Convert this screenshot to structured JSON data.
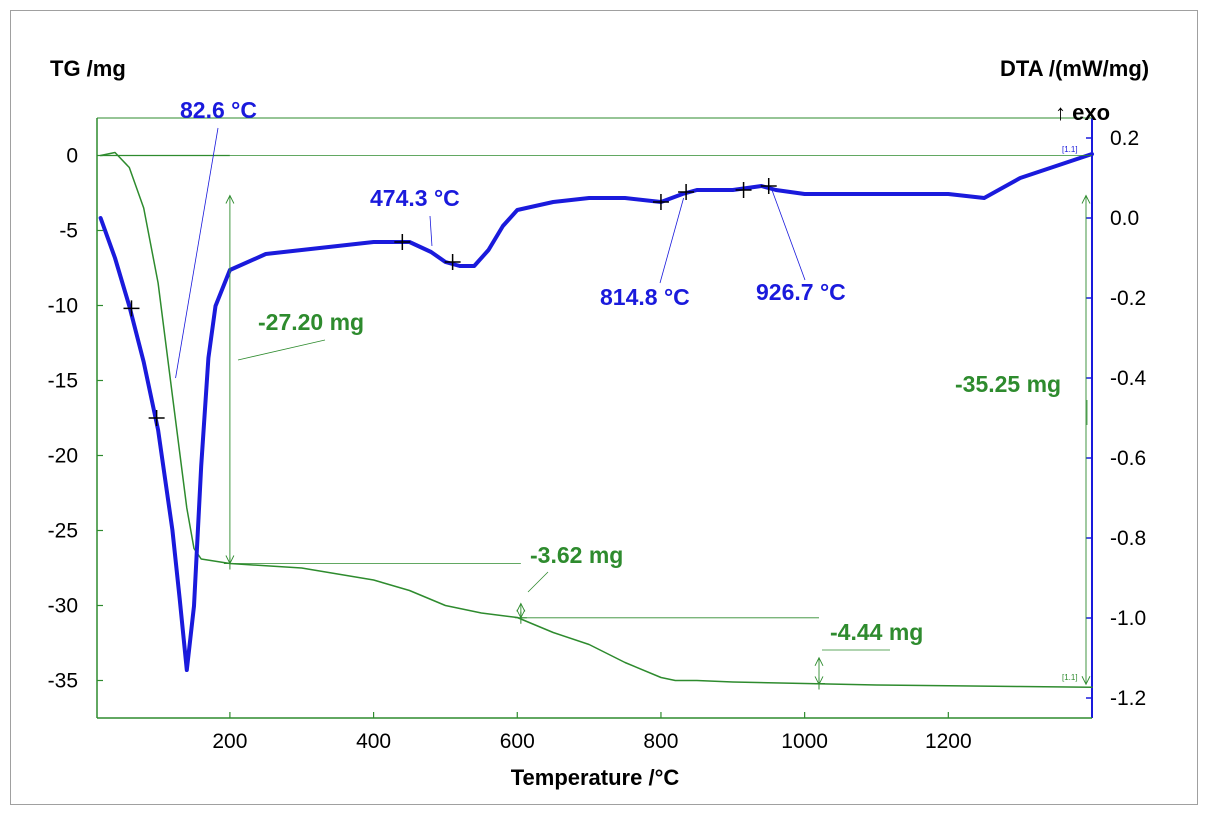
{
  "chart_data": {
    "type": "line",
    "xlabel": "Temperature /°C",
    "ylabel_left": "TG /mg",
    "ylabel_right": "DTA /(mW/mg)",
    "exo_label": "↑ exo",
    "xlim": [
      15,
      1400
    ],
    "ylim_left": [
      -37.5,
      2.5
    ],
    "ylim_right": [
      -1.25,
      0.25
    ],
    "x_ticks": [
      200,
      400,
      600,
      800,
      1000,
      1200
    ],
    "x_tick_labels": [
      "200",
      "400",
      "600",
      "800",
      "1000",
      "1200"
    ],
    "y_left_ticks": [
      0,
      -5,
      -10,
      -15,
      -20,
      -25,
      -30,
      -35
    ],
    "y_left_tick_labels": [
      "0",
      "-5",
      "-10",
      "-15",
      "-20",
      "-25",
      "-30",
      "-35"
    ],
    "y_right_ticks": [
      0.2,
      0.0,
      -0.2,
      -0.4,
      -0.6,
      -0.8,
      -1.0,
      -1.2
    ],
    "y_right_tick_labels": [
      "0.2",
      "0.0",
      "-0.2",
      "-0.4",
      "-0.6",
      "-0.8",
      "-1.0",
      "-1.2"
    ],
    "colors": {
      "tg": "#2e8b2e",
      "dta": "#1a1adc",
      "tg_text": "#2e8b2e",
      "dta_text": "#1a1adc"
    },
    "series": [
      {
        "axis": "left",
        "color": "#2e8b2e",
        "x": [
          20,
          40,
          60,
          80,
          100,
          120,
          140,
          150,
          160,
          200,
          300,
          400,
          450,
          500,
          550,
          600,
          620,
          650,
          700,
          750,
          800,
          820,
          850,
          900,
          1000,
          1100,
          1200,
          1300,
          1400
        ],
        "y": [
          0,
          0.2,
          -0.8,
          -3.5,
          -8.5,
          -16,
          -23.5,
          -26.2,
          -26.9,
          -27.2,
          -27.5,
          -28.3,
          -29.0,
          -30.0,
          -30.5,
          -30.8,
          -31.2,
          -31.8,
          -32.6,
          -33.8,
          -34.8,
          -35.0,
          -35.0,
          -35.1,
          -35.2,
          -35.3,
          -35.35,
          -35.4,
          -35.45
        ]
      },
      {
        "axis": "right",
        "color": "#1a1adc",
        "x": [
          20,
          40,
          60,
          80,
          100,
          120,
          130,
          140,
          150,
          160,
          170,
          180,
          200,
          250,
          300,
          350,
          400,
          450,
          480,
          500,
          520,
          540,
          560,
          580,
          600,
          650,
          700,
          750,
          800,
          830,
          850,
          900,
          940,
          960,
          1000,
          1100,
          1200,
          1250,
          1270,
          1300,
          1350,
          1400
        ],
        "y": [
          0.0,
          -0.1,
          -0.22,
          -0.36,
          -0.53,
          -0.78,
          -0.95,
          -1.13,
          -0.97,
          -0.62,
          -0.35,
          -0.22,
          -0.13,
          -0.09,
          -0.08,
          -0.07,
          -0.06,
          -0.06,
          -0.085,
          -0.11,
          -0.12,
          -0.12,
          -0.08,
          -0.02,
          0.02,
          0.04,
          0.05,
          0.05,
          0.04,
          0.06,
          0.07,
          0.07,
          0.08,
          0.07,
          0.06,
          0.06,
          0.06,
          0.05,
          0.07,
          0.1,
          0.13,
          0.16
        ]
      }
    ],
    "markers_dta": [
      {
        "x": 63,
        "y": -0.226
      },
      {
        "x": 98,
        "y": -0.5
      },
      {
        "x": 440,
        "y": -0.06
      },
      {
        "x": 510,
        "y": -0.11
      },
      {
        "x": 800,
        "y": 0.04
      },
      {
        "x": 835,
        "y": 0.065
      },
      {
        "x": 915,
        "y": 0.07
      },
      {
        "x": 950,
        "y": 0.08
      }
    ],
    "annotations": {
      "dta_peaks": [
        {
          "text": "82.6 °C",
          "x": 82.6
        },
        {
          "text": "474.3 °C",
          "x": 474.3
        },
        {
          "text": "814.8 °C",
          "x": 814.8
        },
        {
          "text": "926.7 °C",
          "x": 926.7
        }
      ],
      "mass_steps": [
        {
          "text": "-27.20 mg",
          "from": 0,
          "to": -27.2,
          "x": 200
        },
        {
          "text": "-3.62 mg",
          "from": -27.2,
          "to": -30.82,
          "x": 605
        },
        {
          "text": "-4.44 mg",
          "from": -30.82,
          "to": -35.26,
          "x": 1020
        },
        {
          "text": "-35.25 mg",
          "from": 0,
          "to": -35.25,
          "x": 1400
        }
      ]
    },
    "corner_marks": [
      "[1.1]",
      "[1.1]"
    ]
  }
}
